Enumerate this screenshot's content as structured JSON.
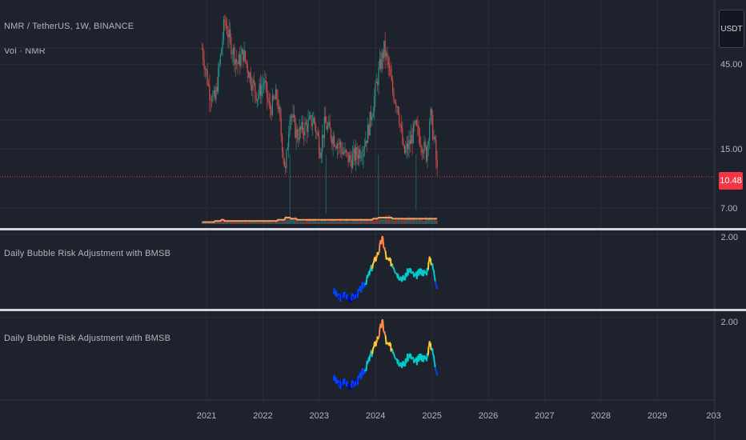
{
  "header": {
    "symbol_line": "NMR / TetherUS, 1W, BINANCE",
    "volume_line": "Vol · NMR",
    "currency_button": "USDT",
    "last_price": "10.48"
  },
  "indicator1": {
    "title": "Daily Bubble Risk Adjustment with BMSB",
    "max_label": "2.00"
  },
  "indicator2": {
    "title": "Daily Bubble Risk Adjustment with BMSB",
    "max_label": "2.00"
  },
  "chart_data": [
    {
      "type": "line",
      "title": "NMR / TetherUS, 1W, BINANCE",
      "scale": "log",
      "yticks": [
        7.0,
        15.0,
        45.0
      ],
      "ytick_labels": [
        "7.00",
        "15.00",
        "45.00"
      ],
      "last_price": 10.48,
      "x": [
        2020.92,
        2021.05,
        2021.15,
        2021.25,
        2021.32,
        2021.42,
        2021.55,
        2021.65,
        2021.78,
        2021.9,
        2022.02,
        2022.12,
        2022.25,
        2022.4,
        2022.48,
        2022.6,
        2022.75,
        2022.9,
        2023.02,
        2023.1,
        2023.22,
        2023.35,
        2023.45,
        2023.55,
        2023.65,
        2023.75,
        2023.85,
        2023.95,
        2024.05,
        2024.15,
        2024.22,
        2024.3,
        2024.4,
        2024.5,
        2024.6,
        2024.7,
        2024.8,
        2024.9,
        2024.97,
        2025.05,
        2025.1
      ],
      "series": [
        {
          "name": "",
          "values": [
            55,
            32,
            28,
            50,
            80,
            60,
            45,
            52,
            38,
            30,
            36,
            25,
            30,
            11,
            25,
            18,
            20,
            22,
            15,
            21,
            18,
            16,
            14,
            13,
            14,
            15,
            18,
            26,
            40,
            55,
            45,
            32,
            26,
            14,
            16,
            20,
            17,
            14,
            24,
            16,
            10.48
          ]
        }
      ],
      "volume_values": [
        1,
        1,
        2,
        3,
        2,
        2,
        2,
        2,
        2,
        2,
        2,
        2,
        3,
        5,
        4,
        3,
        3,
        3,
        3,
        3,
        3,
        3,
        3,
        3,
        3,
        3,
        3,
        4,
        5,
        5,
        5,
        4,
        4,
        4,
        4,
        4,
        4,
        4,
        4,
        4,
        4
      ]
    },
    {
      "type": "line",
      "title": "Daily Bubble Risk Adjustment with BMSB",
      "ylim": [
        0,
        2.0
      ],
      "x": [
        2023.25,
        2023.35,
        2023.45,
        2023.55,
        2023.65,
        2023.75,
        2023.85,
        2023.95,
        2024.05,
        2024.12,
        2024.2,
        2024.3,
        2024.4,
        2024.5,
        2024.6,
        2024.7,
        2024.8,
        2024.9,
        2024.97,
        2025.05,
        2025.1
      ],
      "series": [
        {
          "name": "",
          "values": [
            0.55,
            0.35,
            0.45,
            0.35,
            0.42,
            0.6,
            0.85,
            1.2,
            1.55,
            1.9,
            1.35,
            1.25,
            0.95,
            0.85,
            1.1,
            0.9,
            1.05,
            1.0,
            1.4,
            0.95,
            0.6
          ]
        }
      ],
      "color_scale": [
        "#0000aa",
        "#0044ff",
        "#00cccc",
        "#ffcc33",
        "#ff8844"
      ]
    },
    {
      "type": "line",
      "title": "Daily Bubble Risk Adjustment with BMSB",
      "ylim": [
        0,
        2.0
      ],
      "x": [
        2023.25,
        2023.35,
        2023.45,
        2023.55,
        2023.65,
        2023.75,
        2023.85,
        2023.95,
        2024.05,
        2024.12,
        2024.2,
        2024.3,
        2024.4,
        2024.5,
        2024.6,
        2024.7,
        2024.8,
        2024.9,
        2024.97,
        2025.05,
        2025.1
      ],
      "series": [
        {
          "name": "",
          "values": [
            0.55,
            0.35,
            0.45,
            0.35,
            0.42,
            0.6,
            0.85,
            1.2,
            1.55,
            1.9,
            1.35,
            1.25,
            0.95,
            0.85,
            1.1,
            0.9,
            1.05,
            1.0,
            1.4,
            0.95,
            0.6
          ]
        }
      ]
    }
  ],
  "xaxis": {
    "labels": [
      "2021",
      "2022",
      "2023",
      "2024",
      "2025",
      "2026",
      "2027",
      "2028",
      "2029",
      "203"
    ]
  },
  "colors": {
    "background": "#1e222d",
    "grid": "#2a2e39",
    "up": "#26a69a",
    "down": "#ef5350",
    "volume_ma": "#ff9c5a",
    "price_line": "#f23645"
  }
}
